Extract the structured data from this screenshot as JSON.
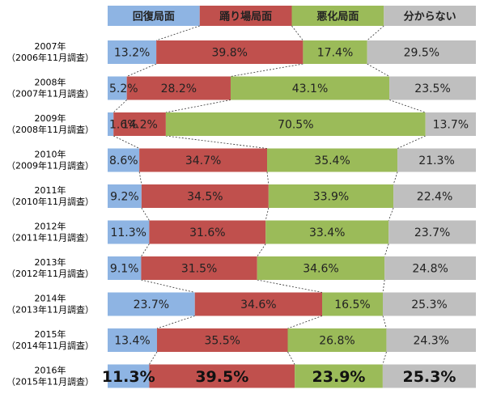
{
  "chart_data": {
    "type": "bar",
    "orientation": "horizontal",
    "stacked": "percent",
    "legend_position": "top",
    "legend_label_inside": true,
    "connector_lines": true,
    "categories": [
      [
        "2007年",
        "（2006年11月調査）"
      ],
      [
        "2008年",
        "（2007年11月調査）"
      ],
      [
        "2009年",
        "（2008年11月調査）"
      ],
      [
        "2010年",
        "（2009年11月調査）"
      ],
      [
        "2011年",
        "（2010年11月調査）"
      ],
      [
        "2012年",
        "（2011年11月調査）"
      ],
      [
        "2013年",
        "（2012年11月調査）"
      ],
      [
        "2014年",
        "（2013年11月調査）"
      ],
      [
        "2015年",
        "（2014年11月調査）"
      ],
      [
        "2016年",
        "（2015年11月調査）"
      ]
    ],
    "series": [
      {
        "name": "回復局面",
        "color": "#8eb4e3",
        "values": [
          13.2,
          5.2,
          1.6,
          8.6,
          9.2,
          11.3,
          9.1,
          23.7,
          13.4,
          11.3
        ]
      },
      {
        "name": "踊り場局面",
        "color": "#c0504d",
        "values": [
          39.8,
          28.2,
          14.2,
          34.7,
          34.5,
          31.6,
          31.5,
          34.6,
          35.5,
          39.5
        ]
      },
      {
        "name": "悪化局面",
        "color": "#9bbb59",
        "values": [
          17.4,
          43.1,
          70.5,
          35.4,
          33.9,
          33.4,
          34.6,
          16.5,
          26.8,
          23.9
        ]
      },
      {
        "name": "分からない",
        "color": "#bfbfbf",
        "values": [
          29.5,
          23.5,
          13.7,
          21.3,
          22.4,
          23.7,
          24.8,
          25.3,
          24.3,
          25.3
        ]
      }
    ],
    "value_labels": [
      [
        "13.2%",
        "39.8%",
        "17.4%",
        "29.5%"
      ],
      [
        "5.2%",
        "28.2%",
        "43.1%",
        "23.5%"
      ],
      [
        "1.6%",
        "14.2%",
        "70.5%",
        "13.7%"
      ],
      [
        "8.6%",
        "34.7%",
        "35.4%",
        "21.3%"
      ],
      [
        "9.2%",
        "34.5%",
        "33.9%",
        "22.4%"
      ],
      [
        "11.3%",
        "31.6%",
        "33.4%",
        "23.7%"
      ],
      [
        "9.1%",
        "31.5%",
        "34.6%",
        "24.8%"
      ],
      [
        "23.7%",
        "34.6%",
        "16.5%",
        "25.3%"
      ],
      [
        "13.4%",
        "35.5%",
        "26.8%",
        "24.3%"
      ],
      [
        "11.3%",
        "39.5%",
        "23.9%",
        "25.3%"
      ]
    ],
    "emphasized_row": 9
  }
}
